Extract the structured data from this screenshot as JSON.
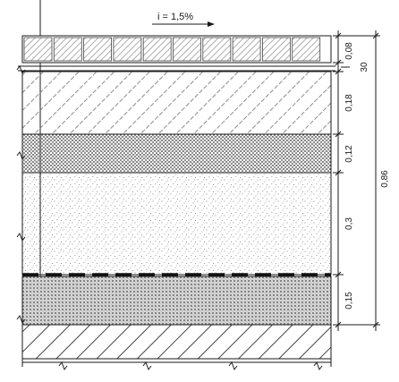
{
  "slope": {
    "label": "i = 1,5%"
  },
  "layers": [
    {
      "id": "paving-stones",
      "thickness": "0,08",
      "pattern": "paving"
    },
    {
      "id": "base-layer-1",
      "thickness": "0,18",
      "pattern": "diagonal-dashed"
    },
    {
      "id": "base-layer-2",
      "thickness": "0,12",
      "pattern": "dense-dots"
    },
    {
      "id": "sand-layer",
      "thickness": "0,3",
      "pattern": "sparse-dots"
    },
    {
      "id": "gravel-layer",
      "thickness": "0,15",
      "pattern": "crosshatch-dots"
    }
  ],
  "gap_label": "30",
  "total_label": "0,86",
  "colors": {
    "line": "#1a1a1a",
    "hatch": "#555555",
    "background": "#ffffff"
  }
}
